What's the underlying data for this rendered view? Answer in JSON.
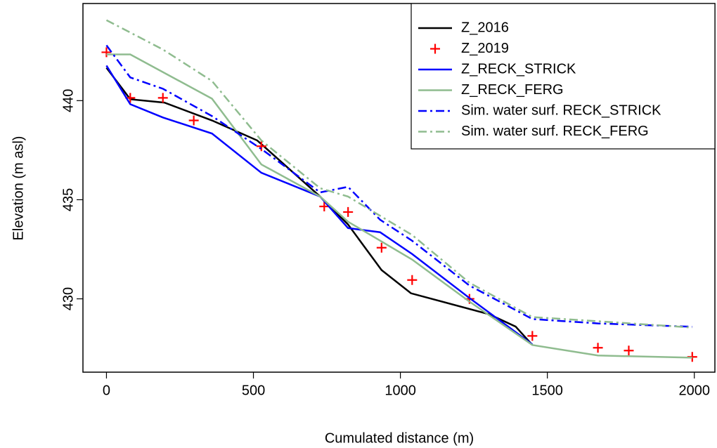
{
  "chart_data": {
    "type": "line",
    "x_label": "Cumulated distance (m)",
    "y_label": "Elevation (m asl)",
    "xlim": [
      -80,
      2070
    ],
    "ylim": [
      426.3,
      444.9
    ],
    "xticks": [
      0,
      500,
      1000,
      1500,
      2000
    ],
    "yticks": [
      430,
      435,
      440
    ],
    "legend": "top-right",
    "series": [
      {
        "name": "Z_2016",
        "color": "#000000",
        "style": "solid",
        "x": [
          0,
          81,
          197,
          359,
          513,
          727,
          822,
          936,
          1036,
          1302,
          1392,
          1449
        ],
        "values": [
          441.66,
          440.07,
          439.9,
          439.0,
          437.99,
          435.16,
          433.75,
          431.45,
          430.28,
          429.22,
          428.6,
          427.67
        ]
      },
      {
        "name": "Z_2019",
        "color": "#ff0000",
        "style": "points",
        "x": [
          0,
          81,
          192,
          297,
          527,
          741,
          822,
          936,
          1040,
          1235,
          1449,
          1672,
          1777,
          1993
        ],
        "values": [
          442.44,
          440.14,
          440.14,
          439.0,
          437.7,
          434.66,
          434.38,
          432.58,
          430.95,
          430.0,
          428.13,
          427.53,
          427.39,
          427.07
        ]
      },
      {
        "name": "Z_RECK_STRICK",
        "color": "#0000ff",
        "style": "solid",
        "x": [
          0,
          81,
          192,
          359,
          527,
          727,
          822,
          931,
          1040,
          1235,
          1449
        ],
        "values": [
          441.77,
          439.82,
          439.15,
          438.34,
          436.36,
          435.16,
          433.57,
          433.36,
          432.26,
          430.04,
          427.7
        ]
      },
      {
        "name": "Z_RECK_FERG",
        "color": "#8fbc8f",
        "style": "solid",
        "x": [
          0,
          81,
          359,
          527,
          727,
          822,
          1040,
          1235,
          1449,
          1672,
          1993
        ],
        "values": [
          442.33,
          442.33,
          440.1,
          436.78,
          435.16,
          433.89,
          431.98,
          429.86,
          427.67,
          427.14,
          427.03
        ]
      },
      {
        "name": "Sim. water surf. RECK_STRICK",
        "color": "#0000ff",
        "style": "dashdot",
        "x": [
          0,
          81,
          192,
          359,
          527,
          727,
          822,
          931,
          1040,
          1235,
          1449,
          1672,
          1993
        ],
        "values": [
          442.79,
          441.17,
          440.6,
          439.22,
          437.56,
          435.37,
          435.65,
          433.99,
          432.93,
          430.67,
          428.98,
          428.76,
          428.59
        ]
      },
      {
        "name": "Sim. water surf. RECK_FERG",
        "color": "#8fbc8f",
        "style": "dashdot",
        "x": [
          0,
          192,
          359,
          527,
          727,
          822,
          1040,
          1235,
          1449,
          1672,
          1993
        ],
        "values": [
          444.06,
          442.58,
          440.99,
          437.99,
          435.58,
          435.16,
          433.22,
          430.81,
          429.08,
          428.87,
          428.55
        ]
      }
    ]
  }
}
